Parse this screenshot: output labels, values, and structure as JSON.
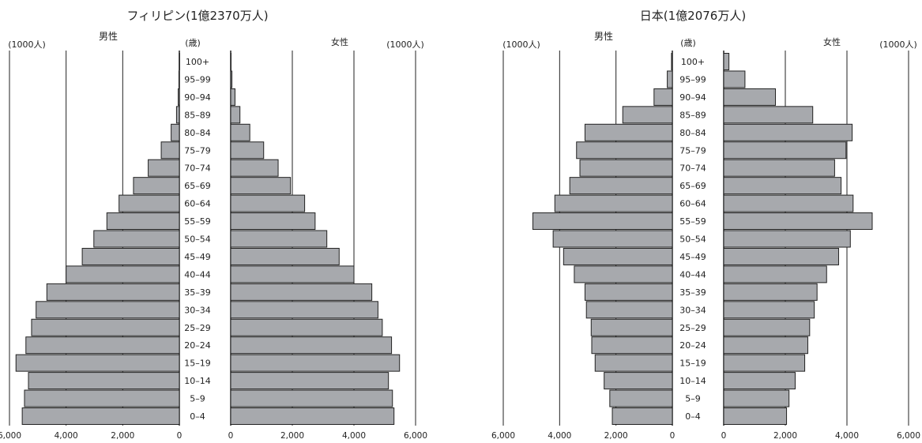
{
  "chart_data": [
    {
      "type": "bar",
      "title": "フィリピン(1億2370万人)",
      "unit_left": "(1000人)",
      "unit_right": "(1000人)",
      "age_unit": "(歳)",
      "male_label": "男性",
      "female_label": "女性",
      "categories": [
        "0–4",
        "5–9",
        "10–14",
        "15–19",
        "20–24",
        "25–29",
        "30–34",
        "35–39",
        "40–44",
        "45–49",
        "50–54",
        "55–59",
        "60–64",
        "65–69",
        "70–74",
        "75–79",
        "80–84",
        "85–89",
        "90–94",
        "95–99",
        "100+"
      ],
      "series": [
        {
          "name": "男性",
          "values": [
            5550,
            5470,
            5330,
            5770,
            5420,
            5220,
            5060,
            4680,
            4000,
            3430,
            3020,
            2560,
            2130,
            1620,
            1100,
            640,
            290,
            100,
            40,
            15,
            3
          ]
        },
        {
          "name": "女性",
          "values": [
            5300,
            5250,
            5120,
            5480,
            5220,
            4920,
            4780,
            4580,
            4000,
            3520,
            3120,
            2740,
            2400,
            1940,
            1540,
            1070,
            620,
            300,
            140,
            40,
            10
          ]
        }
      ],
      "male_ticks": [
        "6,000",
        "4,000",
        "2,000",
        "0"
      ],
      "female_ticks": [
        "0",
        "2,000",
        "4,000",
        "6,000"
      ],
      "xlim": [
        0,
        6000
      ]
    },
    {
      "type": "bar",
      "title": "日本(1億2076万人)",
      "unit_left": "(1000人)",
      "unit_right": "(1000人)",
      "age_unit": "(歳)",
      "male_label": "男性",
      "female_label": "女性",
      "categories": [
        "0–4",
        "5–9",
        "10–14",
        "15–19",
        "20–24",
        "25–29",
        "30–34",
        "35–39",
        "40–44",
        "45–49",
        "50–54",
        "55–59",
        "60–64",
        "65–69",
        "70–74",
        "75–79",
        "80–84",
        "85–89",
        "90–94",
        "95–99",
        "100+"
      ],
      "series": [
        {
          "name": "男性",
          "values": [
            2130,
            2220,
            2420,
            2740,
            2860,
            2880,
            3050,
            3100,
            3480,
            3860,
            4230,
            4950,
            4170,
            3640,
            3280,
            3400,
            3100,
            1760,
            650,
            180,
            30
          ]
        },
        {
          "name": "女性",
          "values": [
            2040,
            2120,
            2320,
            2630,
            2730,
            2790,
            2940,
            3030,
            3340,
            3730,
            4110,
            4820,
            4200,
            3810,
            3600,
            3970,
            4170,
            2890,
            1680,
            690,
            170
          ]
        }
      ],
      "male_ticks": [
        "6,000",
        "4,000",
        "2,000",
        "0"
      ],
      "female_ticks": [
        "0",
        "2,000",
        "4,000",
        "6,000"
      ],
      "xlim": [
        0,
        6000
      ]
    }
  ]
}
